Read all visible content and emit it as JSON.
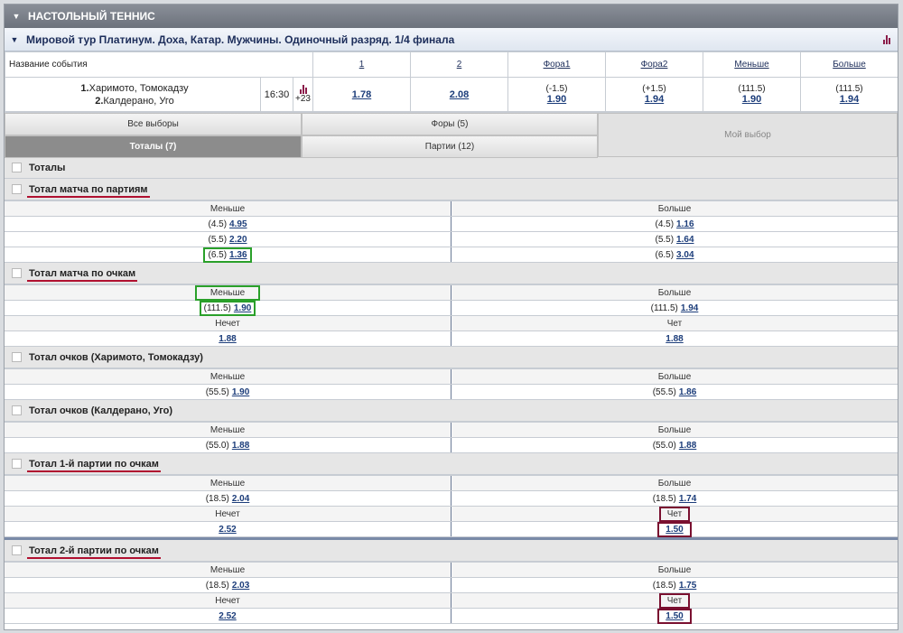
{
  "sport": "НАСТОЛЬНЫЙ ТЕННИС",
  "event_title": "Мировой тур Платинум. Доха, Катар. Мужчины. Одиночный разряд. 1/4 финала",
  "table": {
    "name_header": "Название события",
    "headers": [
      "1",
      "2",
      "Фора1",
      "Фора2",
      "Меньше",
      "Больше"
    ],
    "player1": "Харимото, Томокадзу",
    "player2": "Калдерано, Уго",
    "p1_num": "1.",
    "p2_num": "2.",
    "time": "16:30",
    "more": "+23",
    "odds": [
      {
        "param": "",
        "value": "1.78"
      },
      {
        "param": "",
        "value": "2.08"
      },
      {
        "param": "(-1.5)",
        "value": "1.90"
      },
      {
        "param": "(+1.5)",
        "value": "1.94"
      },
      {
        "param": "(111.5)",
        "value": "1.90"
      },
      {
        "param": "(111.5)",
        "value": "1.94"
      }
    ]
  },
  "tabs": {
    "all": "Все выборы",
    "handicaps": "Форы (5)",
    "totals": "Тоталы (7)",
    "sets": "Партии (12)",
    "my_choice": "Мой выбор"
  },
  "group_title": "Тоталы",
  "labels": {
    "under": "Меньше",
    "over": "Больше",
    "odd": "Нечет",
    "even": "Чет"
  },
  "markets": [
    {
      "title": "Тотал матча по партиям",
      "rows": [
        {
          "up": "(4.5)",
          "uv": "4.95",
          "op": "(4.5)",
          "ov": "1.16"
        },
        {
          "up": "(5.5)",
          "uv": "2.20",
          "op": "(5.5)",
          "ov": "1.64"
        },
        {
          "up": "(6.5)",
          "uv": "1.36",
          "op": "(6.5)",
          "ov": "3.04"
        }
      ]
    },
    {
      "title": "Тотал матча по очкам",
      "rows": [
        {
          "up": "(111.5)",
          "uv": "1.90",
          "op": "(111.5)",
          "ov": "1.94"
        }
      ],
      "odd_even": {
        "odd": "1.88",
        "even": "1.88"
      }
    },
    {
      "title": "Тотал очков (Харимото, Томокадзу)",
      "rows": [
        {
          "up": "(55.5)",
          "uv": "1.90",
          "op": "(55.5)",
          "ov": "1.86"
        }
      ]
    },
    {
      "title": "Тотал очков (Калдерано, Уго)",
      "rows": [
        {
          "up": "(55.0)",
          "uv": "1.88",
          "op": "(55.0)",
          "ov": "1.88"
        }
      ]
    },
    {
      "title": "Тотал 1-й партии по очкам",
      "rows": [
        {
          "up": "(18.5)",
          "uv": "2.04",
          "op": "(18.5)",
          "ov": "1.74"
        }
      ],
      "odd_even": {
        "odd": "2.52",
        "even": "1.50"
      }
    },
    {
      "title": "Тотал 2-й партии по очкам",
      "rows": [
        {
          "up": "(18.5)",
          "uv": "2.03",
          "op": "(18.5)",
          "ov": "1.75"
        }
      ],
      "odd_even": {
        "odd": "2.52",
        "even": "1.50"
      }
    }
  ],
  "colors": {
    "accent_underline": "#b01030",
    "highlight_green": "#2aa02a",
    "highlight_red": "#7a1030",
    "link": "#1c3d7a"
  }
}
